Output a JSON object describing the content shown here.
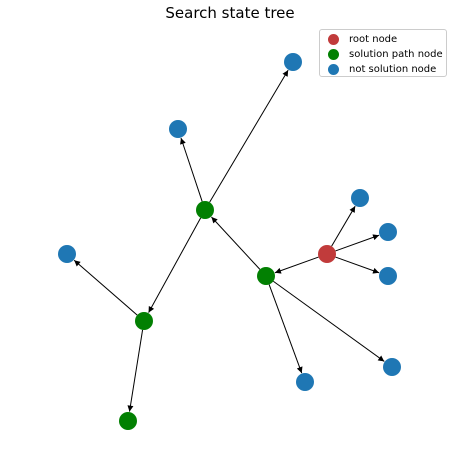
{
  "title": "Search state tree",
  "colors": {
    "root": "#c13b3b",
    "solution": "#028002",
    "other": "#1f77b4",
    "edge": "#000000"
  },
  "legend": [
    {
      "label": "root node",
      "kind": "root"
    },
    {
      "label": "solution path node",
      "kind": "solution"
    },
    {
      "label": "not solution node",
      "kind": "other"
    }
  ],
  "graph": {
    "nodes": [
      {
        "id": "root",
        "kind": "root"
      },
      {
        "id": "s1",
        "kind": "solution"
      },
      {
        "id": "s2",
        "kind": "solution"
      },
      {
        "id": "s3",
        "kind": "solution"
      },
      {
        "id": "s4",
        "kind": "solution"
      },
      {
        "id": "n1",
        "kind": "other"
      },
      {
        "id": "n2",
        "kind": "other"
      },
      {
        "id": "n3",
        "kind": "other"
      },
      {
        "id": "n4",
        "kind": "other"
      },
      {
        "id": "n5",
        "kind": "other"
      },
      {
        "id": "n6",
        "kind": "other"
      },
      {
        "id": "n7",
        "kind": "other"
      },
      {
        "id": "n8",
        "kind": "other"
      },
      {
        "id": "n9",
        "kind": "other"
      }
    ],
    "edges": [
      {
        "from": "root",
        "to": "n1"
      },
      {
        "from": "root",
        "to": "n2"
      },
      {
        "from": "root",
        "to": "n3"
      },
      {
        "from": "root",
        "to": "s1"
      },
      {
        "from": "s1",
        "to": "n4"
      },
      {
        "from": "s1",
        "to": "n5"
      },
      {
        "from": "s1",
        "to": "s2"
      },
      {
        "from": "s2",
        "to": "n6"
      },
      {
        "from": "s2",
        "to": "n7"
      },
      {
        "from": "s2",
        "to": "s3"
      },
      {
        "from": "s3",
        "to": "n8"
      },
      {
        "from": "s3",
        "to": "s4"
      }
    ]
  }
}
